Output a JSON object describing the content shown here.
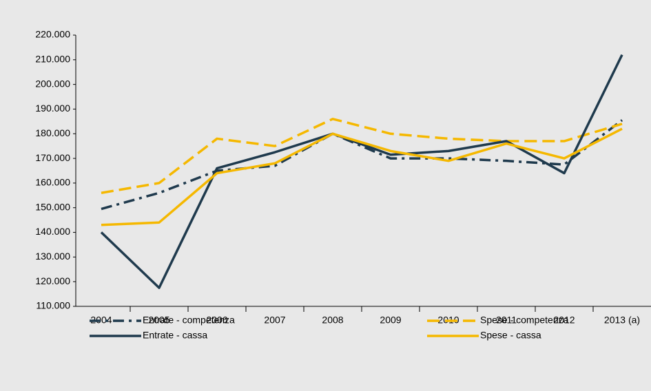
{
  "chart_data": {
    "type": "line",
    "categories": [
      "2004",
      "2005",
      "2006",
      "2007",
      "2008",
      "2009",
      "2010",
      "2011",
      "2012",
      "2013 (a)"
    ],
    "series": [
      {
        "name": "Entrate - competenza",
        "color": "#1f3a4d",
        "dash": "dashdot",
        "values": [
          149500,
          156000,
          165000,
          167000,
          180000,
          170000,
          170000,
          169000,
          167500,
          185500
        ]
      },
      {
        "name": "Spese - competenza",
        "color": "#f5b800",
        "dash": "dash",
        "values": [
          156000,
          160000,
          178000,
          175000,
          186000,
          180000,
          178000,
          177000,
          177000,
          184000
        ]
      },
      {
        "name": "Entrate - cassa",
        "color": "#1f3a4d",
        "dash": "solid",
        "values": [
          140000,
          117500,
          166000,
          172500,
          180000,
          171500,
          173000,
          177000,
          164000,
          212000
        ]
      },
      {
        "name": "Spese - cassa",
        "color": "#f5b800",
        "dash": "solid",
        "values": [
          143000,
          144000,
          164000,
          168000,
          180000,
          173000,
          169000,
          176000,
          170000,
          182000
        ]
      }
    ],
    "ylim": [
      110000,
      220000
    ],
    "yticks": [
      {
        "value": 110000,
        "label": "110.000"
      },
      {
        "value": 120000,
        "label": "120.000"
      },
      {
        "value": 130000,
        "label": "130.000"
      },
      {
        "value": 140000,
        "label": "140.000"
      },
      {
        "value": 150000,
        "label": "150.000"
      },
      {
        "value": 160000,
        "label": "160.000"
      },
      {
        "value": 170000,
        "label": "170.000"
      },
      {
        "value": 180000,
        "label": "180.000"
      },
      {
        "value": 190000,
        "label": "190.000"
      },
      {
        "value": 200000,
        "label": "200.000"
      },
      {
        "value": 210000,
        "label": "210.000"
      },
      {
        "value": 220000,
        "label": "220.000"
      }
    ],
    "grid": false,
    "legend": "bottom"
  }
}
